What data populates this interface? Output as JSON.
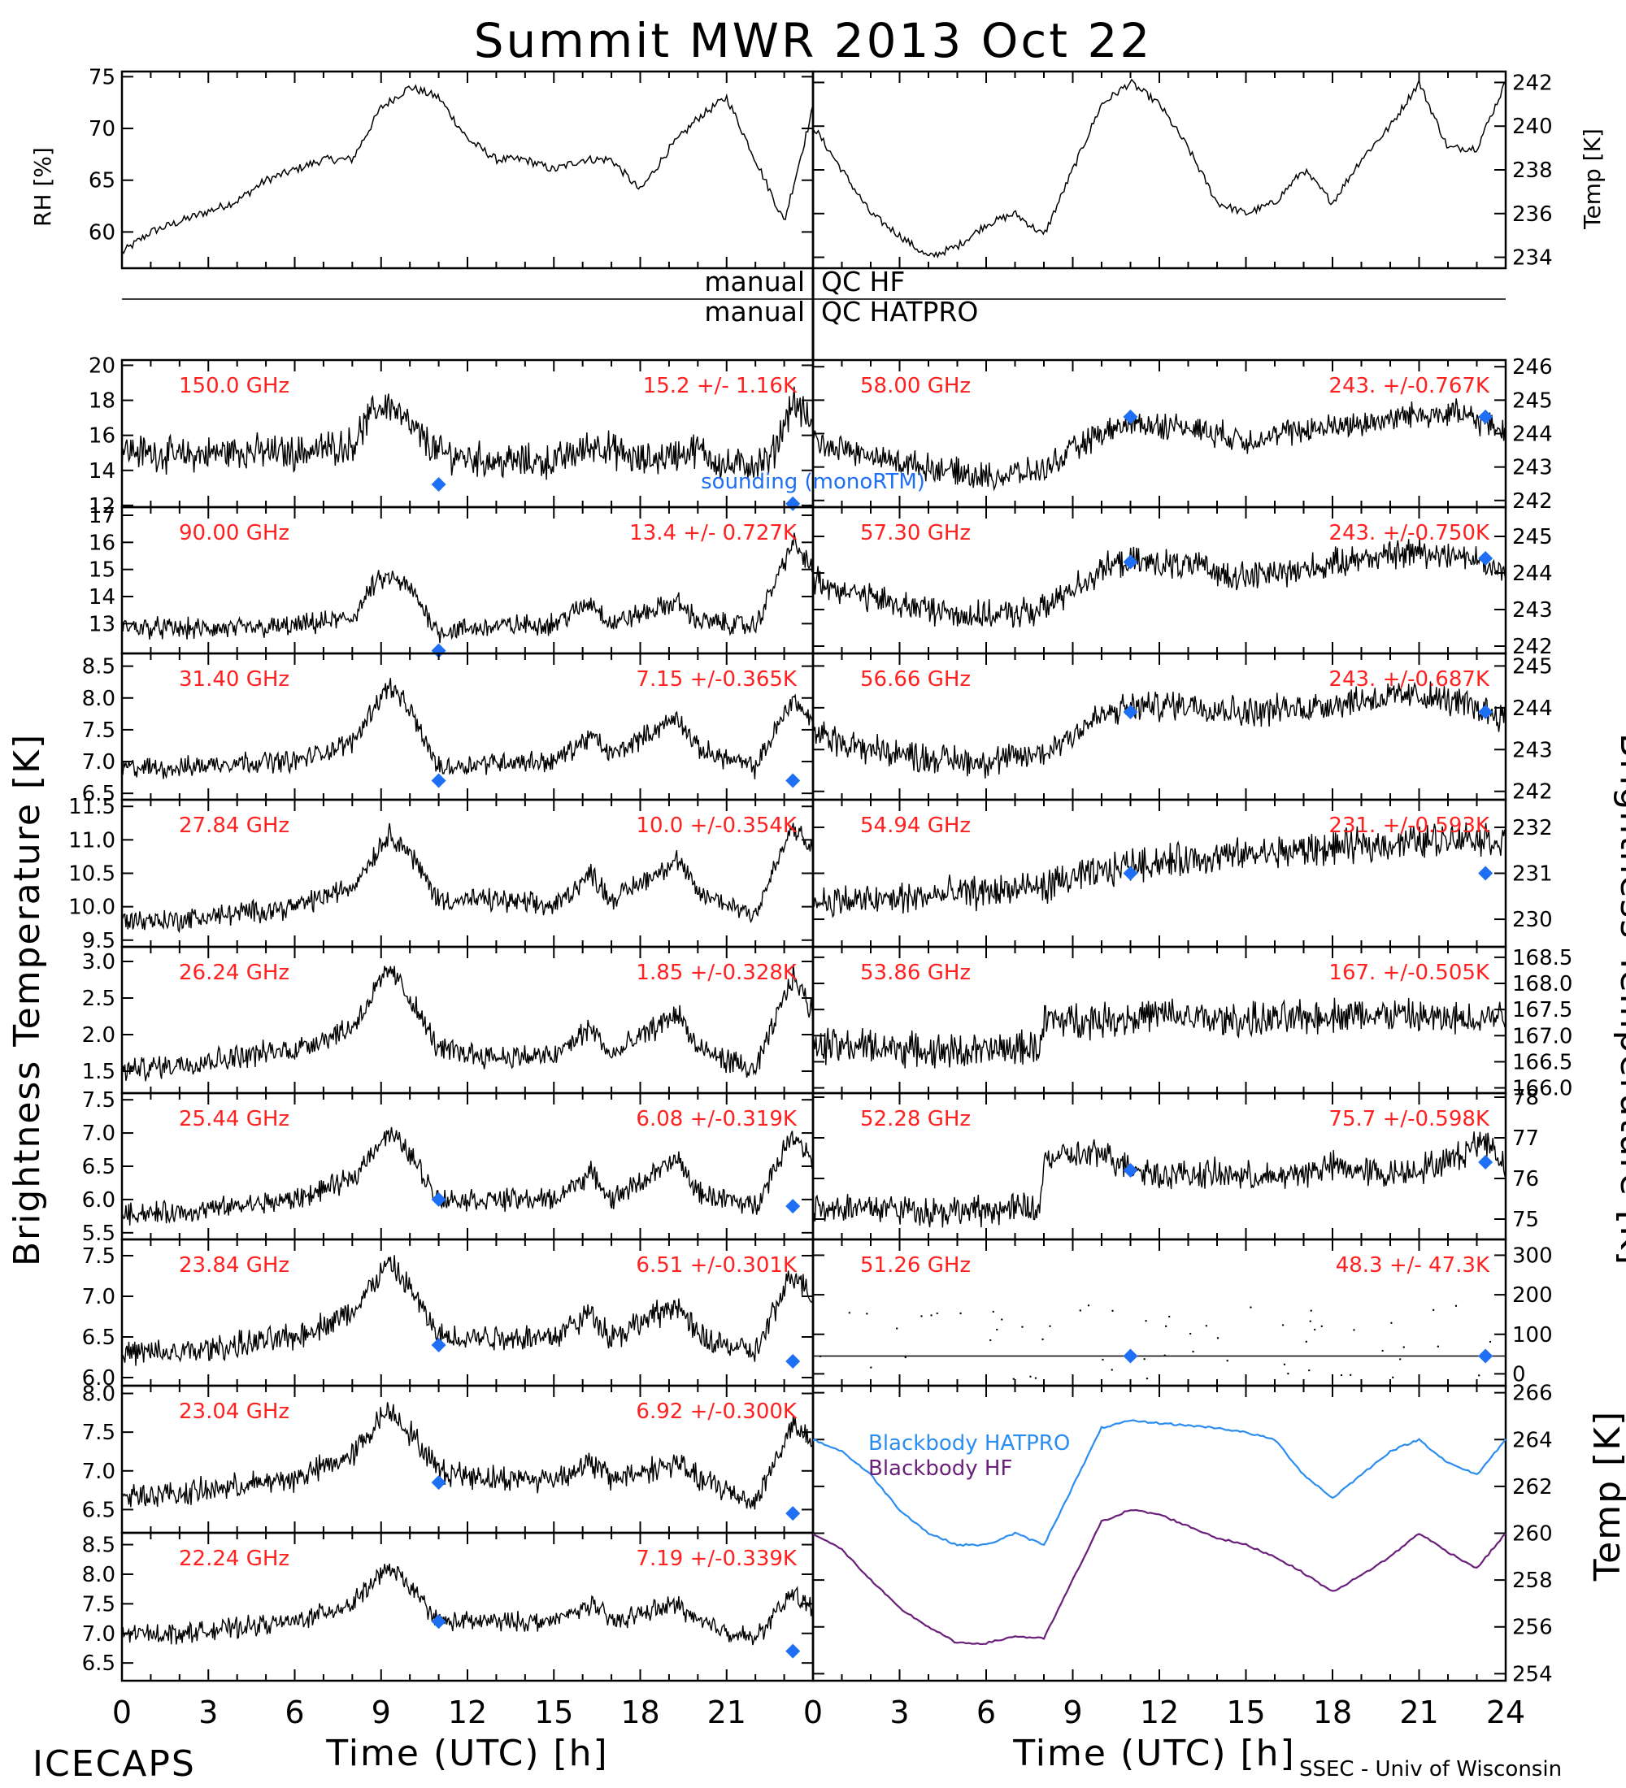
{
  "title": "Summit MWR 2013 Oct 22",
  "footer": {
    "left": "ICECAPS",
    "right": "SSEC - Univ of Wisconsin"
  },
  "qc": {
    "line1_left": "manual",
    "line1_right": "QC HF",
    "line2_left": "manual",
    "line2_right": "QC HATPRO"
  },
  "axis_labels": {
    "brightness_left": "Brightness Temperature [K]",
    "brightness_right": "Brightness Temperature [K]",
    "time_left": "Time (UTC) [h]",
    "time_right": "Time (UTC) [h]",
    "rh": "RH [%]",
    "temp_top": "Temp [K]",
    "temp_bottom": "Temp [K]"
  },
  "x_ticks": [
    "0",
    "3",
    "6",
    "9",
    "12",
    "15",
    "18",
    "21",
    "0",
    "3",
    "6",
    "9",
    "12",
    "15",
    "18",
    "21",
    "24"
  ],
  "legend_sounding": "sounding (monoRTM)",
  "colors": {
    "trace": "#000000",
    "channel_label": "#ff2020",
    "sounding": "#1f6ff5",
    "bb_hatpro": "#2c8df0",
    "bb_hf": "#6a1f7a"
  },
  "chart_data": [
    {
      "type": "line",
      "panel": "rh",
      "xlabel": "",
      "ylabel": "RH [%]",
      "xlim": [
        0,
        24
      ],
      "ylim": [
        56.5,
        75.5
      ],
      "yticks": [
        "60",
        "65",
        "70",
        "75"
      ],
      "grid": false,
      "x": [
        0,
        1,
        2,
        3,
        4,
        5,
        6,
        7,
        8,
        9,
        10,
        11,
        12,
        13,
        14,
        15,
        16,
        17,
        18,
        19,
        20,
        21,
        22,
        23,
        24
      ],
      "values": [
        58,
        60,
        61,
        62,
        63,
        65,
        66,
        67,
        67,
        72,
        74,
        73,
        69,
        67,
        67,
        66,
        67,
        67,
        64,
        68,
        71,
        73,
        67,
        61,
        72
      ]
    },
    {
      "type": "line",
      "panel": "temp",
      "xlabel": "",
      "ylabel": "Temp [K]",
      "xlim": [
        0,
        24
      ],
      "ylim": [
        233.5,
        242.5
      ],
      "yticks": [
        "234",
        "236",
        "238",
        "240",
        "242"
      ],
      "grid": false,
      "x": [
        0,
        1,
        2,
        3,
        4,
        5,
        6,
        7,
        8,
        9,
        10,
        11,
        12,
        13,
        14,
        15,
        16,
        17,
        18,
        19,
        20,
        21,
        22,
        23,
        24
      ],
      "values": [
        240,
        238,
        236,
        235,
        234,
        234.5,
        235.5,
        236,
        235,
        238,
        241,
        242,
        241,
        239,
        236.5,
        236,
        236.5,
        238,
        236.5,
        238.5,
        240,
        242,
        239,
        239,
        242
      ]
    },
    {
      "type": "line",
      "panel": "left-1",
      "channel": "150.0 GHz",
      "summary": "15.2 +/- 1.16K",
      "ylim": [
        11.9,
        20.3
      ],
      "yticks": [
        "12",
        "14",
        "16",
        "18",
        "20"
      ],
      "noise": 1.5,
      "sounding_points": [
        [
          11,
          13.2
        ],
        [
          23.3,
          12.1
        ]
      ],
      "x": [
        0,
        2,
        4,
        6,
        8,
        8.8,
        9.3,
        10,
        11,
        13,
        15,
        16.5,
        18,
        20,
        21,
        22.5,
        23.3,
        24
      ],
      "values": [
        15.2,
        14.8,
        15.1,
        15.0,
        15.5,
        17.5,
        17.8,
        16.5,
        15.0,
        14.5,
        14.5,
        15.5,
        14.5,
        15.2,
        14.2,
        14.5,
        18.0,
        16.5
      ]
    },
    {
      "type": "line",
      "panel": "left-2",
      "channel": "90.00 GHz",
      "summary": "13.4 +/- 0.727K",
      "ylim": [
        11.9,
        17.3
      ],
      "yticks": [
        "13",
        "14",
        "15",
        "16",
        "17"
      ],
      "noise": 0.6,
      "sounding_points": [
        [
          11,
          12.0
        ]
      ],
      "x": [
        0,
        2,
        4,
        6,
        8,
        8.8,
        9.3,
        10,
        11,
        13,
        15,
        16.3,
        17,
        19.3,
        20,
        22,
        23.3,
        24
      ],
      "values": [
        12.9,
        12.8,
        12.8,
        12.9,
        13.2,
        14.5,
        14.7,
        14.3,
        12.7,
        12.9,
        13.0,
        13.8,
        13.0,
        13.8,
        13.1,
        12.9,
        16.0,
        15.0
      ]
    },
    {
      "type": "line",
      "panel": "left-3",
      "channel": "31.40 GHz",
      "summary": "7.15 +/-0.365K",
      "ylim": [
        6.4,
        8.7
      ],
      "yticks": [
        "6.5",
        "7.0",
        "7.5",
        "8.0",
        "8.5"
      ],
      "noise": 0.25,
      "sounding_points": [
        [
          11,
          6.7
        ],
        [
          23.3,
          6.7
        ]
      ],
      "x": [
        0,
        2,
        4,
        6,
        8,
        8.8,
        9.3,
        10,
        11,
        13,
        15,
        16.3,
        17,
        19.3,
        20,
        22,
        23.3,
        24
      ],
      "values": [
        6.9,
        6.9,
        7.0,
        7.0,
        7.3,
        7.9,
        8.2,
        7.8,
        6.9,
        7.0,
        7.0,
        7.4,
        7.1,
        7.7,
        7.2,
        6.9,
        8.0,
        7.6
      ]
    },
    {
      "type": "line",
      "panel": "left-4",
      "channel": "27.84 GHz",
      "summary": "10.0 +/-0.354K",
      "ylim": [
        9.4,
        11.6
      ],
      "yticks": [
        "9.5",
        "10.0",
        "10.5",
        "11.0",
        "11.5"
      ],
      "noise": 0.25,
      "sounding_points": [],
      "x": [
        0,
        2,
        4,
        6,
        8,
        8.8,
        9.3,
        10,
        11,
        13,
        15,
        16.3,
        17,
        19.3,
        20,
        22,
        23.3,
        24
      ],
      "values": [
        9.8,
        9.8,
        9.9,
        10.0,
        10.3,
        10.8,
        11.1,
        10.8,
        10.1,
        10.1,
        10.0,
        10.5,
        10.1,
        10.7,
        10.2,
        9.9,
        11.2,
        10.8
      ]
    },
    {
      "type": "line",
      "panel": "left-5",
      "channel": "26.24 GHz",
      "summary": "1.85 +/-0.328K",
      "ylim": [
        1.2,
        3.2
      ],
      "yticks": [
        "1.5",
        "2.0",
        "2.5",
        "3.0"
      ],
      "noise": 0.25,
      "sounding_points": [],
      "x": [
        0,
        2,
        4,
        6,
        8,
        8.8,
        9.3,
        10,
        11,
        13,
        15,
        16.3,
        17,
        19.3,
        20,
        22,
        23.3,
        24
      ],
      "values": [
        1.5,
        1.6,
        1.7,
        1.8,
        2.1,
        2.6,
        2.9,
        2.5,
        1.8,
        1.7,
        1.7,
        2.1,
        1.7,
        2.3,
        1.8,
        1.5,
        2.8,
        2.3
      ]
    },
    {
      "type": "line",
      "panel": "left-6",
      "channel": "25.44 GHz",
      "summary": "6.08 +/-0.319K",
      "ylim": [
        5.4,
        7.6
      ],
      "yticks": [
        "5.5",
        "6.0",
        "6.5",
        "7.0",
        "7.5"
      ],
      "noise": 0.25,
      "sounding_points": [
        [
          11,
          6.0
        ],
        [
          23.3,
          5.9
        ]
      ],
      "x": [
        0,
        2,
        4,
        6,
        8,
        8.8,
        9.3,
        10,
        11,
        13,
        15,
        16.3,
        17,
        19.3,
        20,
        22,
        23.3,
        24
      ],
      "values": [
        5.8,
        5.8,
        5.9,
        6.0,
        6.3,
        6.8,
        7.0,
        6.7,
        6.0,
        6.0,
        6.0,
        6.4,
        6.0,
        6.6,
        6.1,
        5.9,
        7.0,
        6.6
      ]
    },
    {
      "type": "line",
      "panel": "left-7",
      "channel": "23.84 GHz",
      "summary": "6.51 +/-0.301K",
      "ylim": [
        5.9,
        7.7
      ],
      "yticks": [
        "6.0",
        "6.5",
        "7.0",
        "7.5"
      ],
      "noise": 0.25,
      "sounding_points": [
        [
          11,
          6.4
        ],
        [
          23.3,
          6.2
        ]
      ],
      "x": [
        0,
        2,
        4,
        6,
        8,
        8.8,
        9.3,
        10,
        11,
        13,
        15,
        16.3,
        17,
        19.3,
        20,
        22,
        23.3,
        24
      ],
      "values": [
        6.3,
        6.3,
        6.4,
        6.5,
        6.8,
        7.2,
        7.4,
        7.1,
        6.5,
        6.5,
        6.5,
        6.8,
        6.5,
        6.9,
        6.5,
        6.3,
        7.3,
        7.0
      ]
    },
    {
      "type": "line",
      "panel": "left-8",
      "channel": "23.04 GHz",
      "summary": "6.92 +/-0.300K",
      "ylim": [
        6.2,
        8.1
      ],
      "yticks": [
        "6.5",
        "7.0",
        "7.5",
        "8.0"
      ],
      "noise": 0.25,
      "sounding_points": [
        [
          11,
          6.85
        ],
        [
          23.3,
          6.45
        ]
      ],
      "x": [
        0,
        2,
        4,
        6,
        8,
        8.8,
        9.3,
        10,
        11,
        13,
        15,
        16.3,
        17,
        19.3,
        20,
        22,
        23.3,
        24
      ],
      "values": [
        6.7,
        6.7,
        6.8,
        6.9,
        7.2,
        7.6,
        7.8,
        7.5,
        7.0,
        6.9,
        6.9,
        7.1,
        6.9,
        7.1,
        6.9,
        6.6,
        7.6,
        7.3
      ]
    },
    {
      "type": "line",
      "panel": "left-9",
      "channel": "22.24 GHz",
      "summary": "7.19 +/-0.339K",
      "ylim": [
        6.2,
        8.7
      ],
      "yticks": [
        "6.5",
        "7.0",
        "7.5",
        "8.0",
        "8.5"
      ],
      "noise": 0.25,
      "sounding_points": [
        [
          11,
          7.2
        ],
        [
          23.3,
          6.7
        ]
      ],
      "x": [
        0,
        2,
        4,
        6,
        8,
        8.8,
        9.3,
        10,
        11,
        13,
        15,
        16.3,
        17,
        19.3,
        20,
        22,
        23.3,
        24
      ],
      "values": [
        7.0,
        7.0,
        7.1,
        7.2,
        7.5,
        7.9,
        8.1,
        7.8,
        7.2,
        7.2,
        7.2,
        7.5,
        7.2,
        7.5,
        7.2,
        6.9,
        7.7,
        7.4
      ]
    },
    {
      "type": "line",
      "panel": "right-1",
      "channel": "58.00 GHz",
      "summary": "243. +/-0.767K",
      "ylim": [
        241.8,
        246.2
      ],
      "yticks": [
        "242",
        "243",
        "244",
        "245",
        "246"
      ],
      "noise": 0.6,
      "sounding_points": [
        [
          11,
          244.5
        ],
        [
          23.3,
          244.5
        ]
      ],
      "x": [
        0,
        2,
        4,
        6,
        8,
        9,
        10,
        11,
        13,
        15,
        17,
        19,
        21,
        22.5,
        24
      ],
      "values": [
        243.8,
        243.3,
        243.0,
        242.7,
        242.9,
        243.5,
        244.0,
        244.3,
        244.2,
        243.8,
        244.1,
        244.3,
        244.6,
        244.6,
        244.0
      ]
    },
    {
      "type": "line",
      "panel": "right-2",
      "channel": "57.30 GHz",
      "summary": "243. +/-0.750K",
      "ylim": [
        241.8,
        245.8
      ],
      "yticks": [
        "242",
        "243",
        "244",
        "245"
      ],
      "noise": 0.6,
      "sounding_points": [
        [
          11,
          244.3
        ],
        [
          23.3,
          244.4
        ]
      ],
      "x": [
        0,
        2,
        4,
        6,
        8,
        9,
        10,
        11,
        13,
        15,
        17,
        19,
        21,
        22.5,
        24
      ],
      "values": [
        243.8,
        243.3,
        243.0,
        242.8,
        243.0,
        243.6,
        244.1,
        244.3,
        244.2,
        243.9,
        244.1,
        244.4,
        244.6,
        244.5,
        244.0
      ]
    },
    {
      "type": "line",
      "panel": "right-3",
      "channel": "56.66 GHz",
      "summary": "243. +/-0.687K",
      "ylim": [
        241.8,
        245.3
      ],
      "yticks": [
        "242",
        "243",
        "244",
        "245"
      ],
      "noise": 0.55,
      "sounding_points": [
        [
          11,
          243.9
        ],
        [
          23.3,
          243.9
        ]
      ],
      "x": [
        0,
        2,
        4,
        6,
        8,
        9,
        10,
        11,
        13,
        15,
        17,
        19,
        21,
        22.5,
        24
      ],
      "values": [
        243.4,
        243.0,
        242.8,
        242.7,
        242.9,
        243.4,
        243.8,
        244.0,
        244.1,
        243.9,
        244.0,
        244.2,
        244.3,
        244.1,
        243.8
      ]
    },
    {
      "type": "line",
      "panel": "right-4",
      "channel": "54.94 GHz",
      "summary": "231. +/-0.593K",
      "ylim": [
        229.4,
        232.6
      ],
      "yticks": [
        "230",
        "231",
        "232"
      ],
      "noise": 0.55,
      "sounding_points": [
        [
          11,
          231.0
        ],
        [
          23.3,
          231.0
        ]
      ],
      "x": [
        0,
        2,
        4,
        6,
        8,
        9,
        10,
        11,
        13,
        15,
        17,
        19,
        21,
        22.5,
        24
      ],
      "values": [
        230.4,
        230.4,
        230.5,
        230.6,
        230.7,
        230.9,
        231.0,
        231.2,
        231.3,
        231.4,
        231.5,
        231.6,
        231.7,
        231.8,
        231.7
      ]
    },
    {
      "type": "line",
      "panel": "right-5",
      "channel": "53.86 GHz",
      "summary": "167. +/-0.505K",
      "ylim": [
        165.9,
        168.7
      ],
      "yticks": [
        "166.0",
        "166.5",
        "167.0",
        "167.5",
        "168.0",
        "168.5"
      ],
      "noise": 0.5,
      "sounding_points": [],
      "x": [
        0,
        2,
        4,
        6,
        7.9,
        8,
        10,
        12,
        14,
        16,
        18,
        20,
        22,
        24
      ],
      "values": [
        166.8,
        166.8,
        166.7,
        166.7,
        166.8,
        167.3,
        167.3,
        167.4,
        167.3,
        167.3,
        167.4,
        167.4,
        167.3,
        167.4
      ]
    },
    {
      "type": "line",
      "panel": "right-6",
      "channel": "52.28 GHz",
      "summary": "75.7 +/-0.598K",
      "ylim": [
        74.5,
        78.1
      ],
      "yticks": [
        "75",
        "76",
        "77",
        "78"
      ],
      "noise": 0.55,
      "sounding_points": [
        [
          11,
          76.2
        ],
        [
          23.3,
          76.4
        ]
      ],
      "x": [
        0,
        2,
        4,
        6,
        7.9,
        8,
        10,
        11,
        12,
        14,
        16,
        18,
        20,
        22,
        23.3,
        24
      ],
      "values": [
        75.3,
        75.3,
        75.2,
        75.2,
        75.3,
        76.5,
        76.6,
        76.3,
        76.1,
        76.1,
        76.0,
        76.3,
        76.1,
        76.4,
        77.0,
        76.3
      ]
    },
    {
      "type": "line",
      "panel": "right-7",
      "channel": "51.26 GHz",
      "summary": "48.3 +/- 47.3K",
      "ylim": [
        -30,
        340
      ],
      "yticks": [
        "0",
        "100",
        "200",
        "300"
      ],
      "noise": 0,
      "sounding_points": [
        [
          11,
          45
        ],
        [
          23.3,
          45
        ]
      ],
      "x": [
        0,
        24
      ],
      "values": [
        45,
        45
      ]
    },
    {
      "type": "line",
      "panel": "blackbody",
      "ylabel": "Temp [K]",
      "xlabel": "Time (UTC) [h]",
      "xlim": [
        0,
        24
      ],
      "ylim": [
        253.7,
        266.3
      ],
      "yticks": [
        "254",
        "256",
        "258",
        "260",
        "262",
        "264",
        "266"
      ],
      "grid": false,
      "x": [
        0,
        1,
        2,
        3,
        4,
        5,
        6,
        7,
        8,
        9,
        10,
        11,
        12,
        13,
        14,
        15,
        16,
        17,
        18,
        19,
        20,
        21,
        22,
        23,
        24
      ],
      "series": [
        {
          "name": "Blackbody HATPRO",
          "values": [
            264,
            263.5,
            262.5,
            261,
            260,
            259.5,
            259.5,
            260,
            259.5,
            262,
            264.5,
            264.8,
            264.7,
            264.6,
            264.5,
            264.3,
            264,
            262.5,
            261.5,
            262.5,
            263.5,
            264,
            263,
            262.5,
            264
          ]
        },
        {
          "name": "Blackbody HF",
          "values": [
            260,
            259.3,
            258,
            256.8,
            256,
            255.3,
            255.3,
            255.6,
            255.5,
            258,
            260.5,
            261,
            260.8,
            260.3,
            259.8,
            259.5,
            259,
            258.3,
            257.5,
            258.2,
            259,
            260,
            259.2,
            258.5,
            260
          ]
        }
      ]
    }
  ]
}
